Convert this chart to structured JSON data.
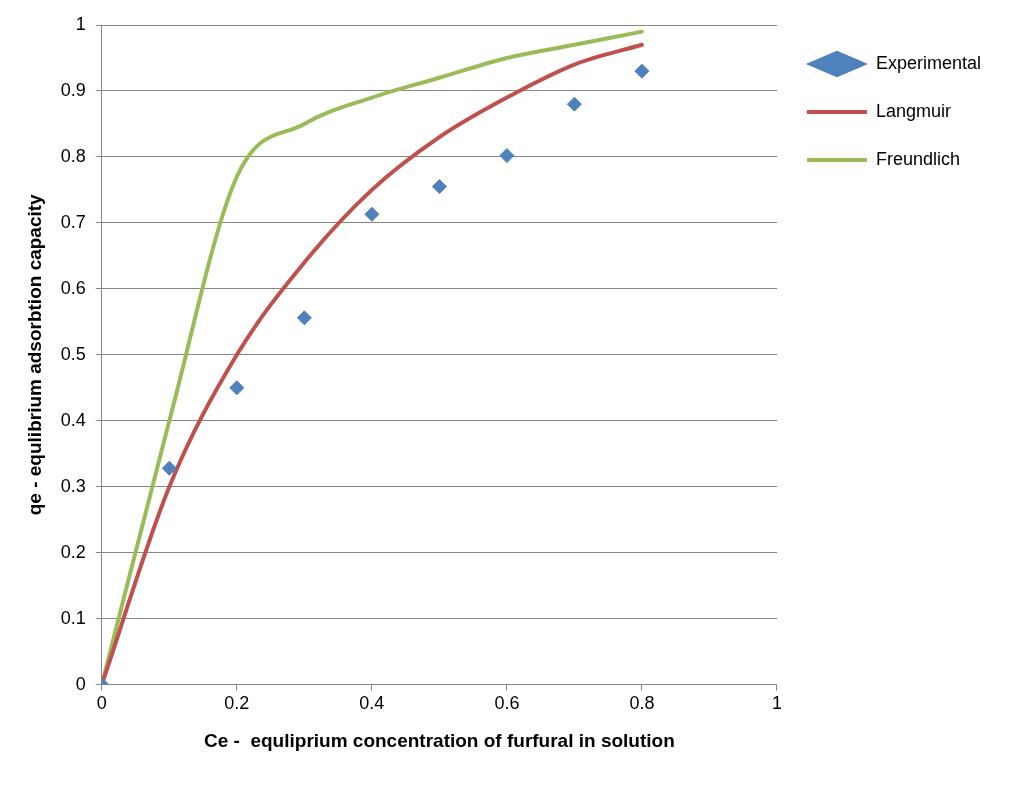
{
  "chart_data": {
    "type": "scatter",
    "xlabel": "Ce -  equliprium concentration of furfural in solution",
    "ylabel": "qe - equlibrium adsorbtion capacity",
    "x": [
      0,
      0.1,
      0.2,
      0.3,
      0.4,
      0.5,
      0.6,
      0.7,
      0.8
    ],
    "series": [
      {
        "name": "Experimental",
        "type": "scatter",
        "marker": "diamond",
        "color": "#4f81bd",
        "values": [
          0,
          0.328,
          0.45,
          0.556,
          0.713,
          0.755,
          0.802,
          0.88,
          0.93
        ]
      },
      {
        "name": "Langmuir",
        "type": "line",
        "marker": "none",
        "line_style": "solid",
        "color": "#c0504d",
        "values": [
          0,
          0.3,
          0.5,
          0.64,
          0.75,
          0.83,
          0.89,
          0.94,
          0.97
        ]
      },
      {
        "name": "Freundlich",
        "type": "line",
        "marker": "none",
        "line_style": "solid",
        "color": "#9bbb59",
        "values": [
          0,
          0.4,
          0.77,
          0.85,
          0.89,
          0.92,
          0.95,
          0.97,
          0.99
        ]
      }
    ],
    "xlim": [
      0,
      1
    ],
    "xticks": [
      0,
      0.2,
      0.4,
      0.6,
      0.8,
      1
    ],
    "ylim": [
      0,
      1
    ],
    "yticks": [
      0,
      0.1,
      0.2,
      0.3,
      0.4,
      0.5,
      0.6,
      0.7,
      0.8,
      0.9,
      1
    ],
    "grid": "y",
    "legend": "right"
  }
}
